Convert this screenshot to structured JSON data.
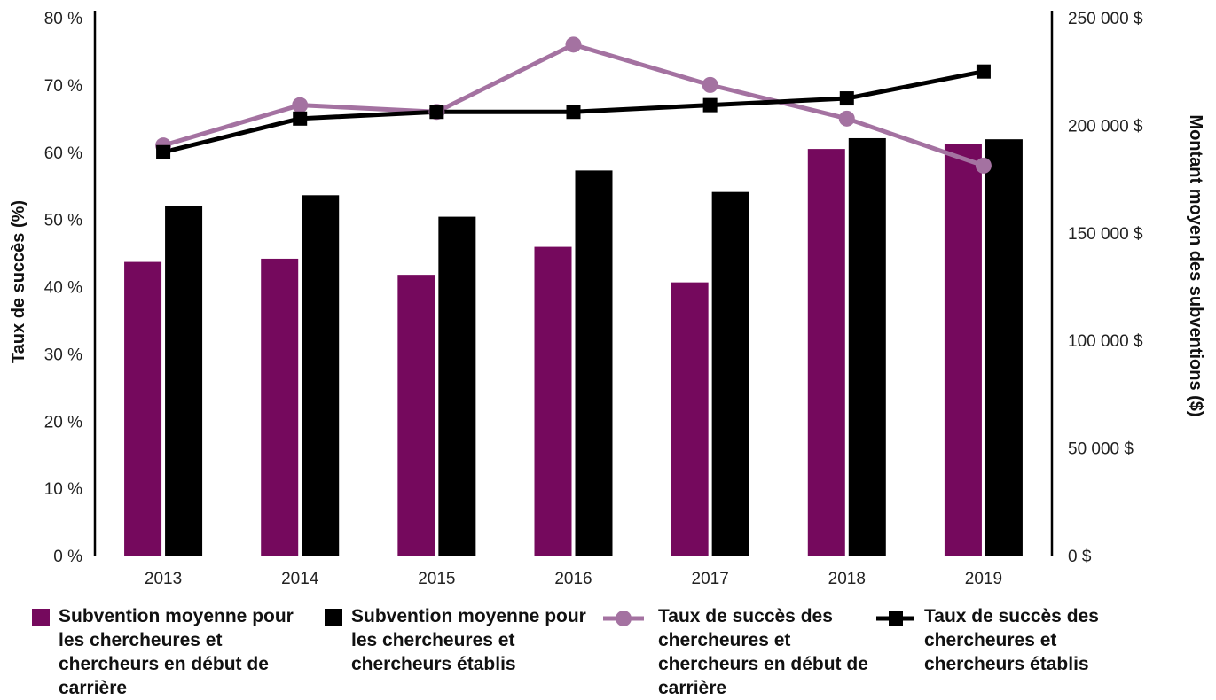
{
  "colors": {
    "early_bar": "#75095d",
    "established_bar": "#000000",
    "early_line": "#a472a1",
    "established_line": "#000000",
    "axis": "#000000"
  },
  "chart_data": {
    "type": "bar",
    "categories": [
      "2013",
      "2014",
      "2015",
      "2016",
      "2017",
      "2018",
      "2019"
    ],
    "y_left": {
      "label": "Taux de succès (%)",
      "range": [
        0,
        80
      ],
      "ticks": [
        "0 %",
        "10 %",
        "20 %",
        "30 %",
        "40 %",
        "50 %",
        "60 %",
        "70 %",
        "80 %"
      ]
    },
    "y_right": {
      "label": "Montant moyen des subventions ($)",
      "range": [
        0,
        250000
      ],
      "ticks": [
        "0 $",
        "50 000 $",
        "100 000 $",
        "150 000 $",
        "200 000 $",
        "250 000 $"
      ]
    },
    "series": [
      {
        "name": "Subvention moyenne pour les chercheures et chercheurs en début de carrière",
        "type": "bar",
        "axis": "right",
        "values": [
          136500,
          138000,
          130500,
          143500,
          127000,
          189000,
          191500
        ]
      },
      {
        "name": "Subvention moyenne pour les chercheures et chercheurs établis",
        "type": "bar",
        "axis": "right",
        "values": [
          162500,
          167500,
          157500,
          179000,
          169000,
          194000,
          193500
        ]
      },
      {
        "name": "Taux de succès des chercheures et chercheurs en début de carrière",
        "type": "line",
        "axis": "left",
        "marker": "circle",
        "values": [
          61,
          67,
          66,
          76,
          70,
          65,
          58
        ]
      },
      {
        "name": "Taux de succès des chercheures et chercheurs établis",
        "type": "line",
        "axis": "left",
        "marker": "square",
        "values": [
          60,
          65,
          66,
          66,
          67,
          68,
          72
        ]
      }
    ],
    "grid": false,
    "legend_position": "bottom"
  },
  "legend": [
    {
      "label": "Subvention moyenne pour les chercheures et chercheurs en début de carrière",
      "marker": "square",
      "color": "#75095d"
    },
    {
      "label": "Subvention moyenne pour les chercheures et chercheurs établis",
      "marker": "square",
      "color": "#000000"
    },
    {
      "label": "Taux de succès des chercheures et chercheurs en début de carrière",
      "marker": "line-circle",
      "color": "#a472a1"
    },
    {
      "label": "Taux de succès des chercheures et chercheurs établis",
      "marker": "line-square",
      "color": "#000000"
    }
  ]
}
